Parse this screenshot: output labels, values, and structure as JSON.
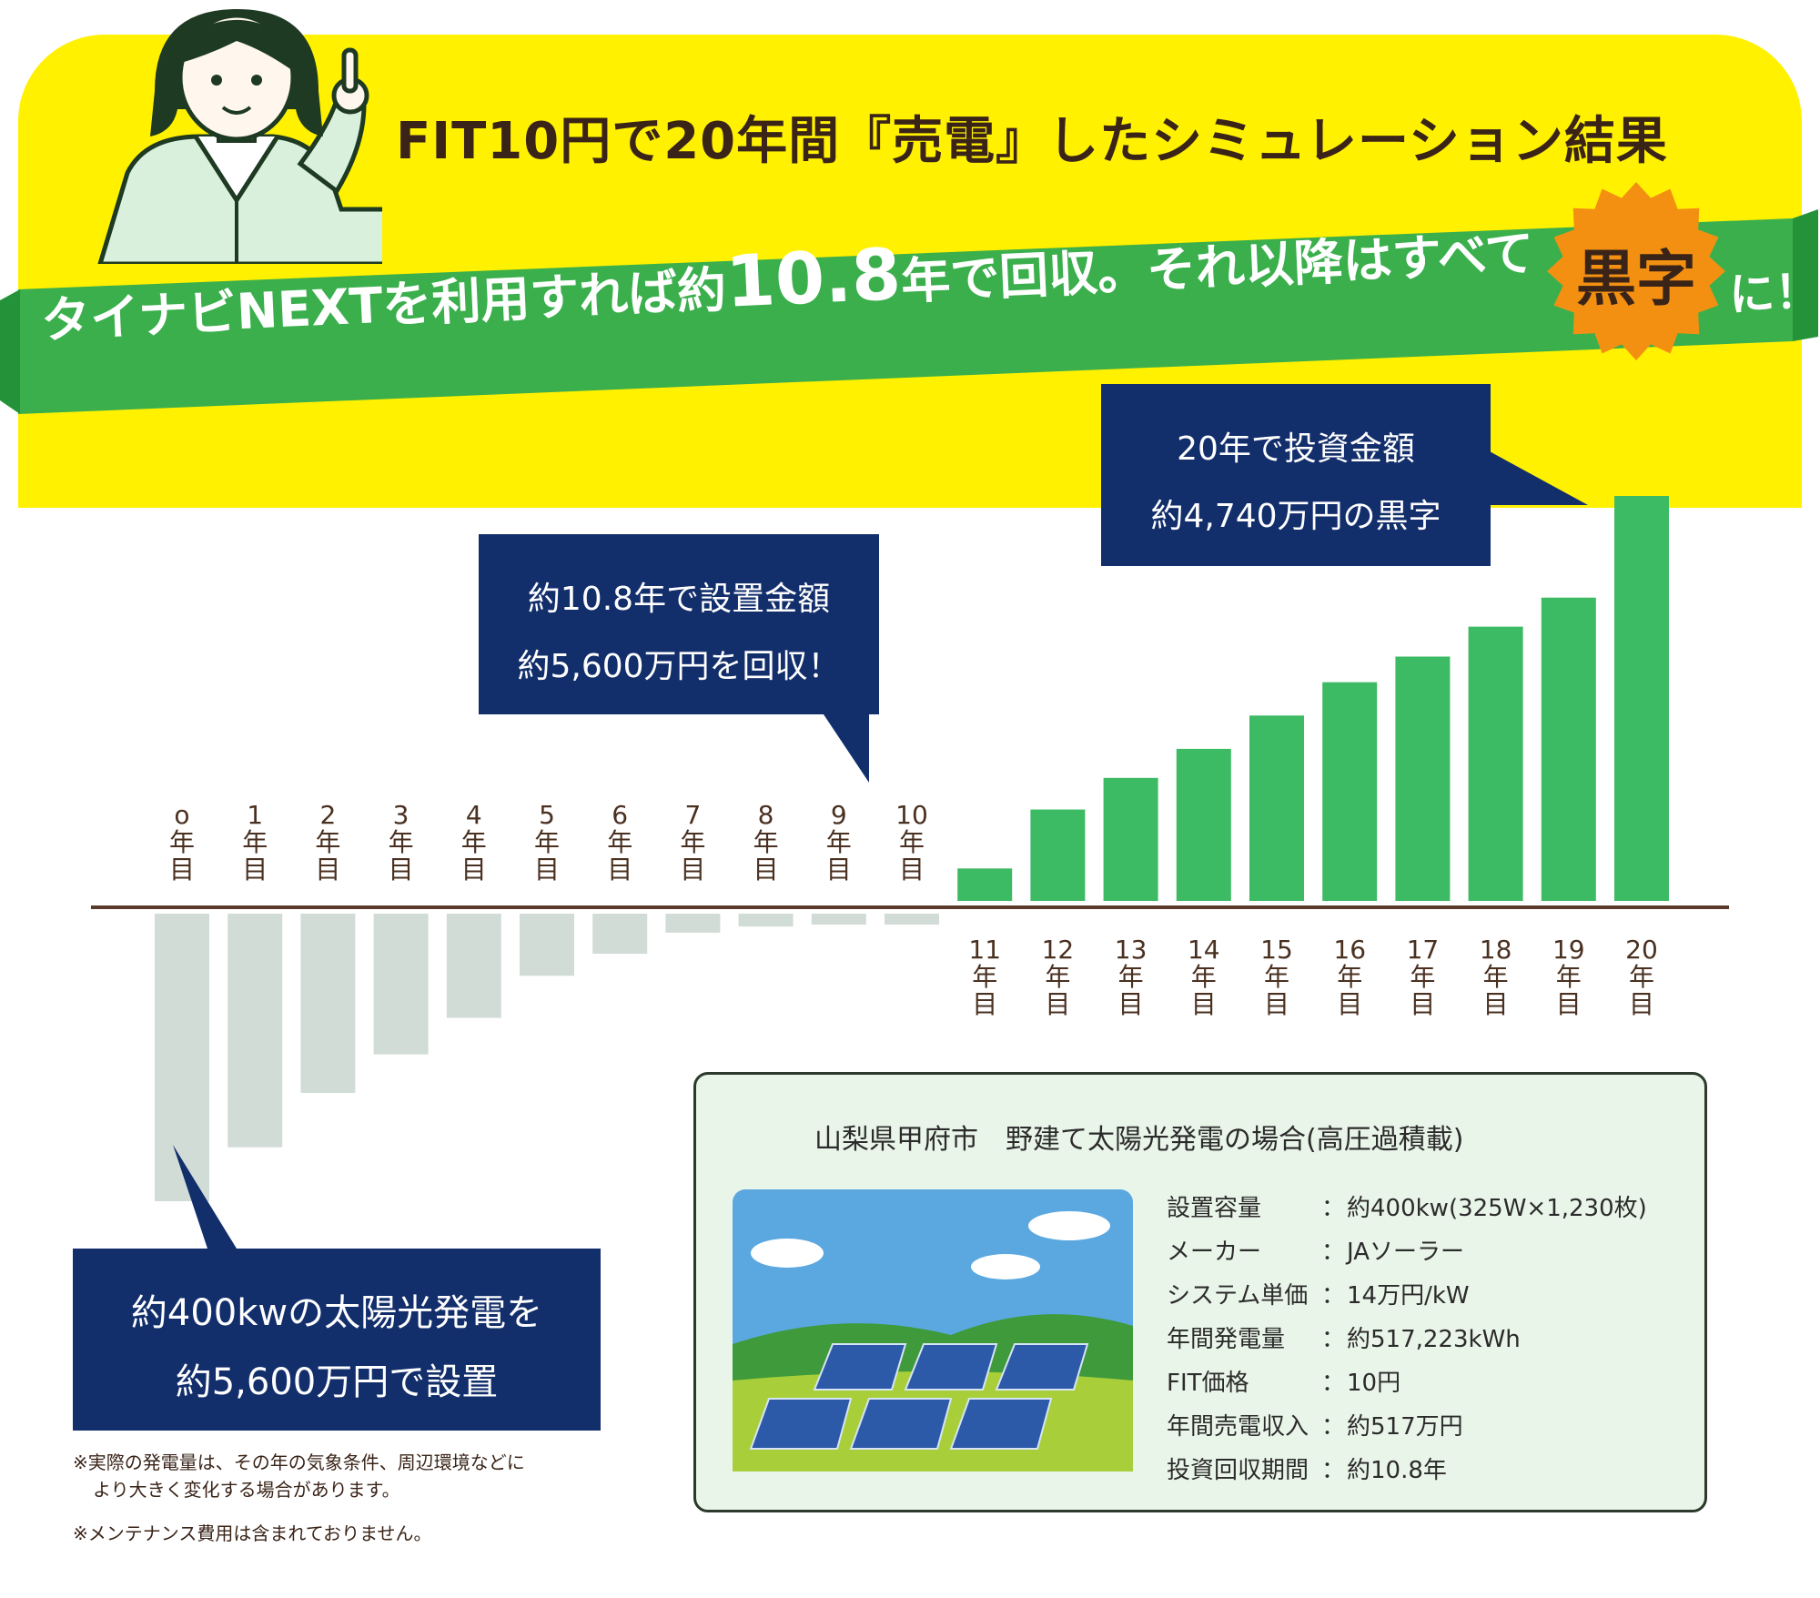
{
  "header": {
    "title": "FIT10円で20年間『売電』したシミュレーション結果",
    "banner_pre": "タイナビNEXTを利用すれば約",
    "banner_num": "10.8",
    "banner_post": "年で回収。それ以降はすべて",
    "banner_badge": "黒字",
    "banner_end": "に！"
  },
  "callouts": {
    "install_line1": "約400kwの太陽光発電を",
    "install_line2": "約5,600万円で設置",
    "payback_line1": "約10.8年で設置金額",
    "payback_line2": "約5,600万円を回収！",
    "profit_line1": "20年で投資金額",
    "profit_line2": "約4,740万円の黒字"
  },
  "notes": {
    "note1_line1": "※実際の発電量は、その年の気象条件、周辺環境などに",
    "note1_line2": "より大きく変化する場合があります。",
    "note2": "※メンテナンス費用は含まれておりません。"
  },
  "spec": {
    "title": "山梨県甲府市　野建て太陽光発電の場合(高圧過積載)",
    "rows": [
      {
        "label": "設置容量",
        "value": "約400kw(325W×1,230枚)"
      },
      {
        "label": "メーカー",
        "value": "JAソーラー"
      },
      {
        "label": "システム単価",
        "value": "14万円/kW"
      },
      {
        "label": "年間発電量",
        "value": "約517,223kWh"
      },
      {
        "label": "FIT価格",
        "value": "10円"
      },
      {
        "label": "年間売電収入",
        "value": "約517万円"
      },
      {
        "label": "投資回収期間",
        "value": "約10.8年"
      }
    ]
  },
  "colors": {
    "yellow": "#fff100",
    "green_banner": "#3aaf4c",
    "bar_positive": "#3dba64",
    "bar_negative": "#d2dcd6",
    "callout_navy": "#122e6b",
    "badge_orange": "#f39012",
    "text_brown": "#3a2418"
  },
  "chart_data": {
    "type": "bar",
    "title": "",
    "xlabel": "",
    "ylabel": "",
    "categories": [
      "o年目",
      "1年目",
      "2年目",
      "3年目",
      "4年目",
      "5年目",
      "6年目",
      "7年目",
      "8年目",
      "9年目",
      "10年目",
      "11年目",
      "12年目",
      "13年目",
      "14年目",
      "15年目",
      "16年目",
      "17年目",
      "18年目",
      "19年目",
      "20年目"
    ],
    "category_labels": [
      [
        "o",
        "年",
        "目"
      ],
      [
        "1",
        "年",
        "目"
      ],
      [
        "2",
        "年",
        "目"
      ],
      [
        "3",
        "年",
        "目"
      ],
      [
        "4",
        "年",
        "目"
      ],
      [
        "5",
        "年",
        "目"
      ],
      [
        "6",
        "年",
        "目"
      ],
      [
        "7",
        "年",
        "目"
      ],
      [
        "8",
        "年",
        "目"
      ],
      [
        "9",
        "年",
        "目"
      ],
      [
        "10",
        "年",
        "目"
      ],
      [
        "11",
        "年",
        "目"
      ],
      [
        "12",
        "年",
        "目"
      ],
      [
        "13",
        "年",
        "目"
      ],
      [
        "14",
        "年",
        "目"
      ],
      [
        "15",
        "年",
        "目"
      ],
      [
        "16",
        "年",
        "目"
      ],
      [
        "17",
        "年",
        "目"
      ],
      [
        "18",
        "年",
        "目"
      ],
      [
        "19",
        "年",
        "目"
      ],
      [
        "20",
        "年",
        "目"
      ]
    ],
    "values": [
      -5600,
      -4550,
      -3490,
      -2740,
      -2030,
      -1210,
      -780,
      -370,
      -250,
      -180,
      -130,
      380,
      1070,
      1440,
      1780,
      2170,
      2560,
      2860,
      3210,
      3550,
      4740
    ],
    "units": "万円",
    "ylim": [
      -5600,
      4740
    ],
    "grid": false,
    "legend": "none"
  }
}
